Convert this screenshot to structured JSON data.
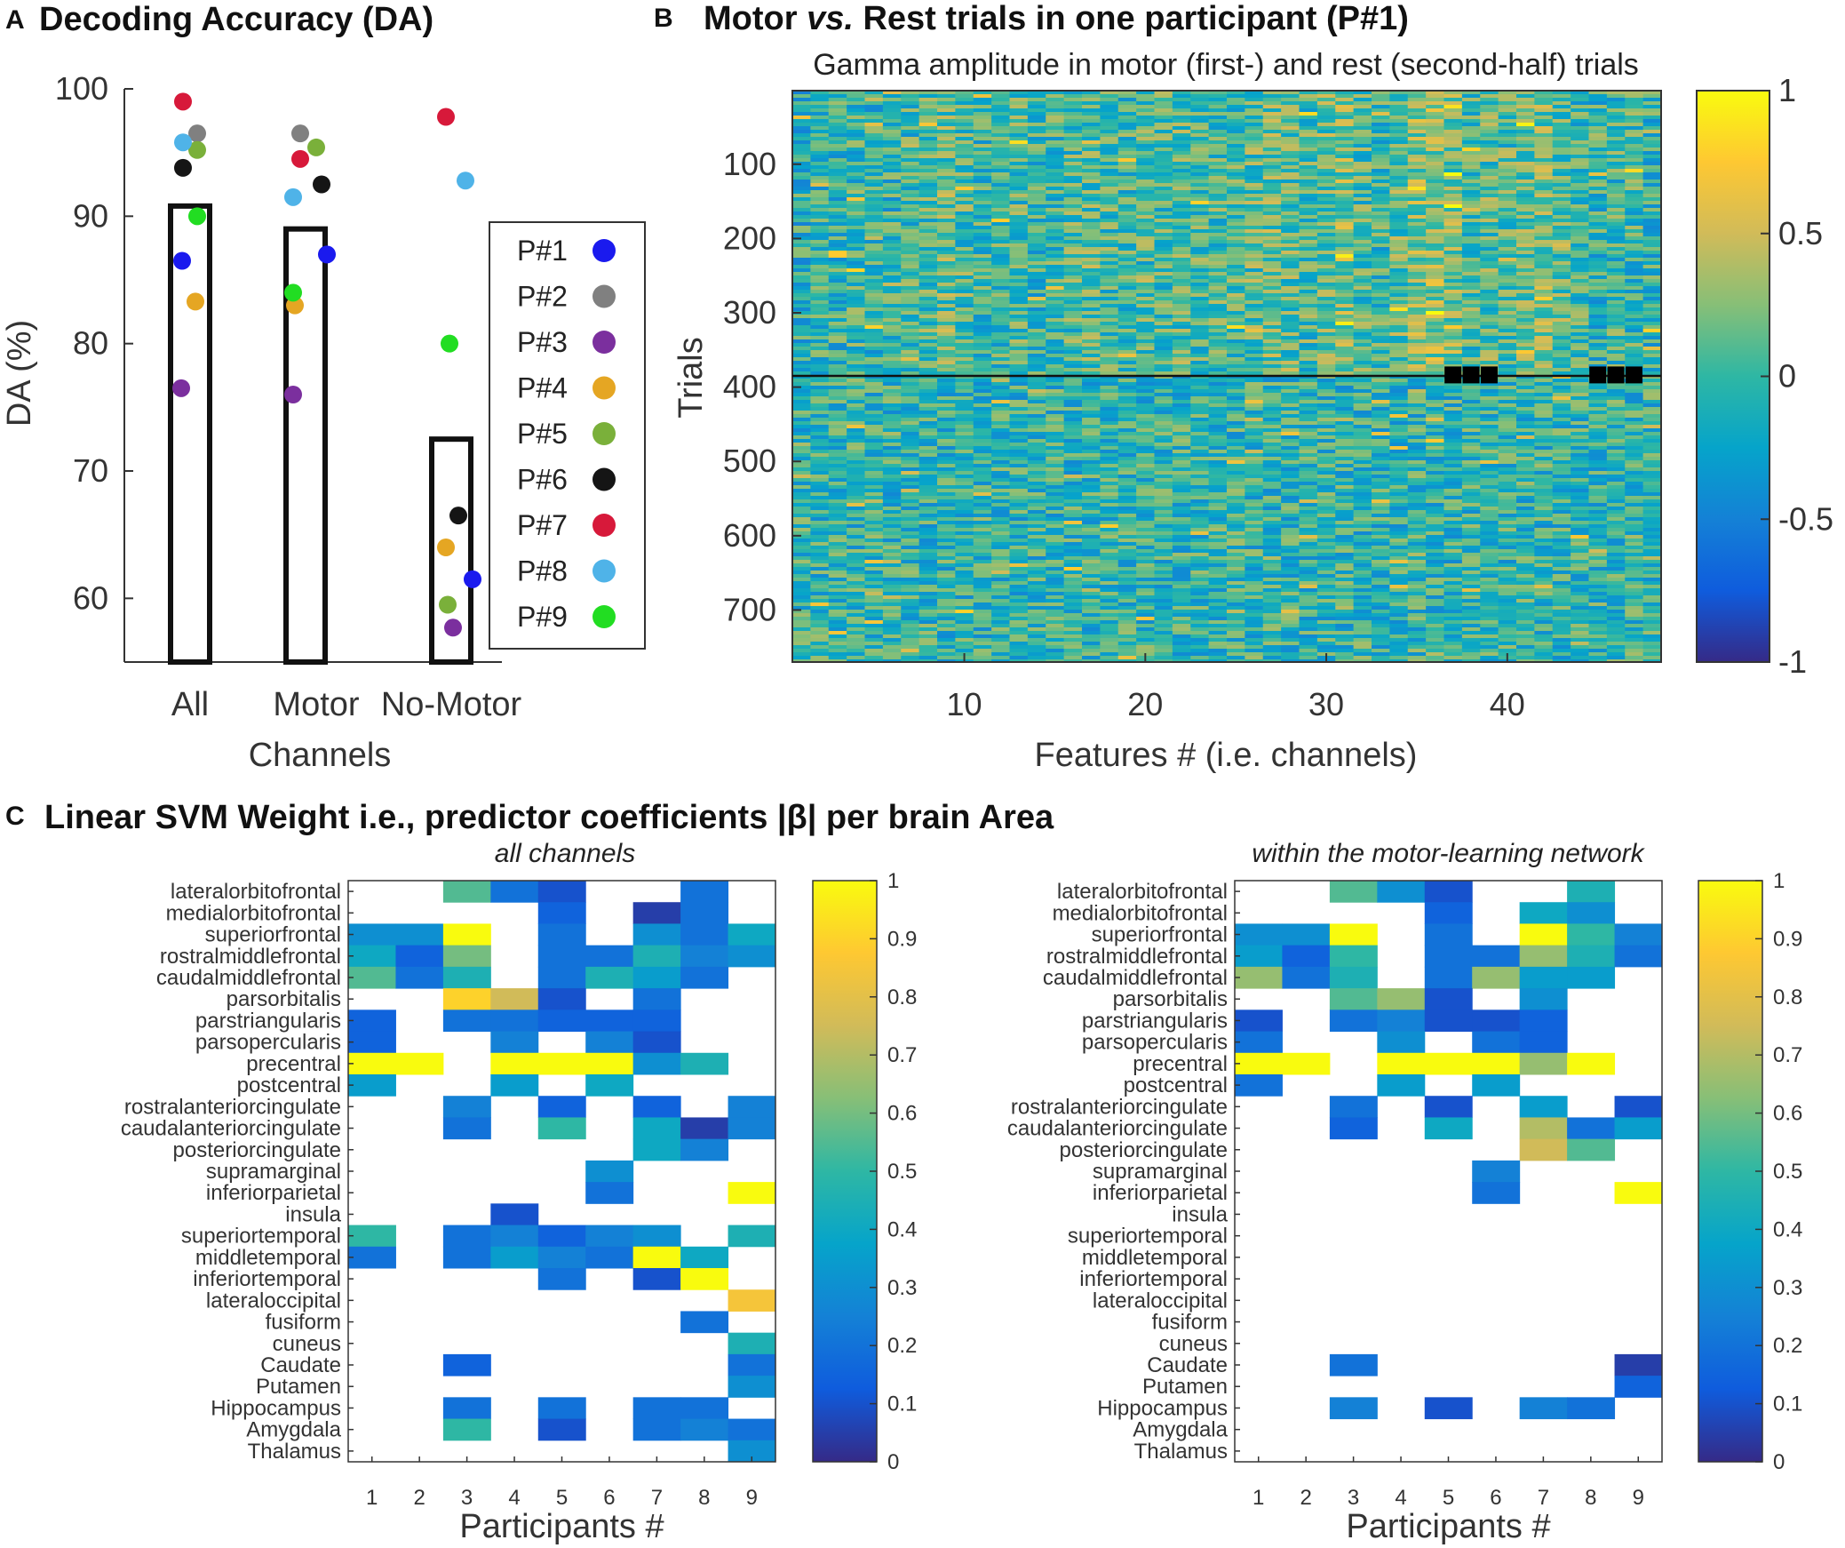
{
  "panel_a": {
    "label": "A",
    "title": "Decoding Accuracy (DA)",
    "ylabel": "DA (%)",
    "xlabel": "Channels",
    "categories": [
      "All",
      "Motor",
      "No-Motor"
    ],
    "yticks": [
      "60",
      "70",
      "80",
      "90",
      "100"
    ]
  },
  "panel_b": {
    "label": "B",
    "title_prefix": "Motor ",
    "title_ital": "vs.",
    "title_suffix": " Rest trials in one participant (P#1)",
    "subtitle": "Gamma amplitude in motor (first-) and rest (second-half) trials",
    "ylabel": "Trials",
    "xlabel": "Features # (i.e. channels)",
    "yticks": [
      "100",
      "200",
      "300",
      "400",
      "500",
      "600",
      "700"
    ],
    "xticks": [
      "10",
      "20",
      "30",
      "40"
    ],
    "cbar_ticks": [
      "1",
      "0.5",
      "0",
      "-0.5",
      "-1"
    ]
  },
  "panel_c": {
    "label": "C",
    "title": "Linear SVM Weight i.e., predictor coefficients |β| per brain Area",
    "left_subtitle": "all channels",
    "right_subtitle": "within the motor-learning network",
    "xlabel": "Participants #",
    "xticks": [
      "1",
      "2",
      "3",
      "4",
      "5",
      "6",
      "7",
      "8",
      "9"
    ],
    "cbar_ticks": [
      "1",
      "0.9",
      "0.8",
      "0.7",
      "0.6",
      "0.5",
      "0.4",
      "0.3",
      "0.2",
      "0.1",
      "0"
    ]
  },
  "chart_data": [
    {
      "type": "scatter",
      "title": "Decoding Accuracy (DA)",
      "xlabel": "Channels",
      "ylabel": "DA (%)",
      "ylim": [
        55,
        100
      ],
      "categories": [
        "All",
        "Motor",
        "No-Motor"
      ],
      "bars": [
        90.8,
        89.0,
        72.5
      ],
      "legend": [
        {
          "name": "P#1",
          "color": "#1a1aee"
        },
        {
          "name": "P#2",
          "color": "#808080"
        },
        {
          "name": "P#3",
          "color": "#7b2f9e"
        },
        {
          "name": "P#4",
          "color": "#e5a623"
        },
        {
          "name": "P#5",
          "color": "#7ab03a"
        },
        {
          "name": "P#6",
          "color": "#151515"
        },
        {
          "name": "P#7",
          "color": "#d7193a"
        },
        {
          "name": "P#8",
          "color": "#4fb3e8"
        },
        {
          "name": "P#9",
          "color": "#22dd22"
        }
      ],
      "series": [
        {
          "name": "P#1",
          "values": [
            86.5,
            87.0,
            61.5
          ]
        },
        {
          "name": "P#2",
          "values": [
            96.5,
            96.5,
            null
          ]
        },
        {
          "name": "P#3",
          "values": [
            76.5,
            76.0,
            57.7
          ]
        },
        {
          "name": "P#4",
          "values": [
            83.3,
            83.0,
            64.0
          ]
        },
        {
          "name": "P#5",
          "values": [
            95.2,
            95.4,
            59.5
          ]
        },
        {
          "name": "P#6",
          "values": [
            93.8,
            92.5,
            66.5
          ]
        },
        {
          "name": "P#7",
          "values": [
            99.0,
            94.5,
            97.8
          ]
        },
        {
          "name": "P#8",
          "values": [
            95.8,
            91.5,
            92.8
          ]
        },
        {
          "name": "P#9",
          "values": [
            90.0,
            84.0,
            80.0
          ]
        }
      ]
    },
    {
      "type": "heatmap",
      "title": "Motor vs. Rest trials in one participant (P#1)",
      "subtitle": "Gamma amplitude in motor (first-) and rest (second-half) trials",
      "xlabel": "Features # (i.e. channels)",
      "ylabel": "Trials",
      "xlim": [
        0.5,
        48.5
      ],
      "ylim": [
        1,
        770
      ],
      "split_trial": 383,
      "clim": [
        -1,
        1
      ],
      "colormap": "parula",
      "column_bias_first_half": [
        -0.1,
        -0.05,
        -0.05,
        0,
        -0.05,
        -0.05,
        0,
        0.05,
        0.15,
        0.05,
        0,
        0,
        0.05,
        -0.05,
        0,
        0.05,
        0.1,
        0.05,
        0,
        0.05,
        0.05,
        0.1,
        0.05,
        0.05,
        0.05,
        0.1,
        0.15,
        0.1,
        0.05,
        0.15,
        0.25,
        0.05,
        0,
        0.1,
        0.25,
        0.3,
        0.2,
        0.05,
        0.1,
        0.05,
        0.15,
        0.2,
        0.1,
        0,
        -0.05,
        0,
        0,
        -0.05
      ],
      "masked_cells": [
        {
          "feature": 37,
          "trial": 383
        },
        {
          "feature": 38,
          "trial": 383
        },
        {
          "feature": 39,
          "trial": 383
        },
        {
          "feature": 45,
          "trial": 383
        },
        {
          "feature": 46,
          "trial": 383
        },
        {
          "feature": 47,
          "trial": 383
        }
      ]
    },
    {
      "type": "heatmap",
      "title": "all channels",
      "xlabel": "Participants #",
      "clim": [
        0,
        1
      ],
      "colormap": "parula",
      "rows": [
        "lateralorbitofrontal",
        "medialorbitofrontal",
        "superiorfrontal",
        "rostralmiddlefrontal",
        "caudalmiddlefrontal",
        "parsorbitalis",
        "parstriangularis",
        "parsopercularis",
        "precentral",
        "postcentral",
        "rostralanteriorcingulate",
        "caudalanteriorcingulate",
        "posteriorcingulate",
        "supramarginal",
        "inferiorparietal",
        "insula",
        "superiortemporal",
        "middletemporal",
        "inferiortemporal",
        "lateraloccipital",
        "fusiform",
        "cuneus",
        "Caudate",
        "Putamen",
        "Hippocampus",
        "Amygdala",
        "Thalamus"
      ],
      "columns": [
        "1",
        "2",
        "3",
        "4",
        "5",
        "6",
        "7",
        "8",
        "9"
      ],
      "values": [
        [
          null,
          null,
          0.55,
          0.2,
          0.1,
          null,
          null,
          0.2,
          null
        ],
        [
          null,
          null,
          null,
          null,
          0.15,
          null,
          0.05,
          0.2,
          null
        ],
        [
          0.3,
          0.3,
          1.0,
          null,
          0.2,
          null,
          0.3,
          0.2,
          0.4
        ],
        [
          0.4,
          0.15,
          0.6,
          null,
          0.2,
          0.2,
          0.45,
          0.25,
          0.3
        ],
        [
          0.55,
          0.2,
          0.45,
          null,
          0.2,
          0.45,
          0.35,
          0.2,
          null
        ],
        [
          null,
          null,
          0.9,
          0.75,
          0.1,
          null,
          0.2,
          null,
          null
        ],
        [
          0.15,
          null,
          0.2,
          0.2,
          0.15,
          0.15,
          0.15,
          null,
          null
        ],
        [
          0.15,
          null,
          null,
          0.25,
          null,
          0.25,
          0.1,
          null,
          null
        ],
        [
          1.0,
          1.0,
          null,
          1.0,
          1.0,
          1.0,
          0.3,
          0.45,
          null
        ],
        [
          0.35,
          null,
          null,
          0.35,
          null,
          0.4,
          null,
          null,
          null
        ],
        [
          null,
          null,
          0.25,
          null,
          0.15,
          null,
          0.15,
          null,
          0.25
        ],
        [
          null,
          null,
          0.2,
          null,
          0.5,
          null,
          0.4,
          0.05,
          0.25
        ],
        [
          null,
          null,
          null,
          null,
          null,
          null,
          0.4,
          0.25,
          null
        ],
        [
          null,
          null,
          null,
          null,
          null,
          0.3,
          null,
          null,
          null
        ],
        [
          null,
          null,
          null,
          null,
          null,
          0.2,
          null,
          null,
          1.0
        ],
        [
          null,
          null,
          null,
          0.1,
          null,
          null,
          null,
          null,
          null
        ],
        [
          0.5,
          null,
          0.2,
          0.25,
          0.15,
          0.25,
          0.3,
          null,
          0.45
        ],
        [
          0.2,
          null,
          0.2,
          0.35,
          0.25,
          0.2,
          1.0,
          0.4,
          null
        ],
        [
          null,
          null,
          null,
          null,
          0.2,
          null,
          0.1,
          1.0,
          null
        ],
        [
          null,
          null,
          null,
          null,
          null,
          null,
          null,
          null,
          0.85
        ],
        [
          null,
          null,
          null,
          null,
          null,
          null,
          null,
          0.2,
          null
        ],
        [
          null,
          null,
          null,
          null,
          null,
          null,
          null,
          null,
          0.45
        ],
        [
          null,
          null,
          0.15,
          null,
          null,
          null,
          null,
          null,
          0.2
        ],
        [
          null,
          null,
          null,
          null,
          null,
          null,
          null,
          null,
          0.3
        ],
        [
          null,
          null,
          0.2,
          null,
          0.2,
          null,
          0.2,
          0.2,
          null
        ],
        [
          null,
          null,
          0.5,
          null,
          0.1,
          null,
          0.2,
          0.25,
          0.2
        ],
        [
          null,
          null,
          null,
          null,
          null,
          null,
          null,
          null,
          0.3
        ]
      ]
    },
    {
      "type": "heatmap",
      "title": "within the motor-learning network",
      "xlabel": "Participants #",
      "clim": [
        0,
        1
      ],
      "colormap": "parula",
      "rows": [
        "lateralorbitofrontal",
        "medialorbitofrontal",
        "superiorfrontal",
        "rostralmiddlefrontal",
        "caudalmiddlefrontal",
        "parsorbitalis",
        "parstriangularis",
        "parsopercularis",
        "precentral",
        "postcentral",
        "rostralanteriorcingulate",
        "caudalanteriorcingulate",
        "posteriorcingulate",
        "supramarginal",
        "inferiorparietal",
        "insula",
        "superiortemporal",
        "middletemporal",
        "inferiortemporal",
        "lateraloccipital",
        "fusiform",
        "cuneus",
        "Caudate",
        "Putamen",
        "Hippocampus",
        "Amygdala",
        "Thalamus"
      ],
      "columns": [
        "1",
        "2",
        "3",
        "4",
        "5",
        "6",
        "7",
        "8",
        "9"
      ],
      "values": [
        [
          null,
          null,
          0.55,
          0.3,
          0.1,
          null,
          null,
          0.45,
          null
        ],
        [
          null,
          null,
          null,
          null,
          0.15,
          null,
          0.4,
          0.3,
          null
        ],
        [
          0.3,
          0.3,
          1.0,
          null,
          0.2,
          null,
          1.0,
          0.5,
          0.25
        ],
        [
          0.35,
          0.15,
          0.5,
          null,
          0.2,
          0.2,
          0.65,
          0.45,
          0.2
        ],
        [
          0.65,
          0.2,
          0.45,
          null,
          0.2,
          0.65,
          0.35,
          0.35,
          null
        ],
        [
          null,
          null,
          0.55,
          0.65,
          0.1,
          null,
          0.3,
          null,
          null
        ],
        [
          0.1,
          null,
          0.2,
          0.25,
          0.1,
          0.1,
          0.15,
          null,
          null
        ],
        [
          0.2,
          null,
          null,
          0.3,
          null,
          0.2,
          0.15,
          null,
          null
        ],
        [
          1.0,
          1.0,
          null,
          1.0,
          1.0,
          1.0,
          0.65,
          1.0,
          null
        ],
        [
          0.2,
          null,
          null,
          0.35,
          null,
          0.35,
          null,
          null,
          null
        ],
        [
          null,
          null,
          0.2,
          null,
          0.1,
          null,
          0.35,
          null,
          0.1
        ],
        [
          null,
          null,
          0.15,
          null,
          0.4,
          null,
          0.7,
          0.2,
          0.35
        ],
        [
          null,
          null,
          null,
          null,
          null,
          null,
          0.75,
          0.55,
          null
        ],
        [
          null,
          null,
          null,
          null,
          null,
          0.25,
          null,
          null,
          null
        ],
        [
          null,
          null,
          null,
          null,
          null,
          0.2,
          null,
          null,
          1.0
        ],
        [
          null,
          null,
          null,
          null,
          null,
          null,
          null,
          null,
          null
        ],
        [
          null,
          null,
          null,
          null,
          null,
          null,
          null,
          null,
          null
        ],
        [
          null,
          null,
          null,
          null,
          null,
          null,
          null,
          null,
          null
        ],
        [
          null,
          null,
          null,
          null,
          null,
          null,
          null,
          null,
          null
        ],
        [
          null,
          null,
          null,
          null,
          null,
          null,
          null,
          null,
          null
        ],
        [
          null,
          null,
          null,
          null,
          null,
          null,
          null,
          null,
          null
        ],
        [
          null,
          null,
          null,
          null,
          null,
          null,
          null,
          null,
          null
        ],
        [
          null,
          null,
          0.2,
          null,
          null,
          null,
          null,
          null,
          0.05
        ],
        [
          null,
          null,
          null,
          null,
          null,
          null,
          null,
          null,
          0.15
        ],
        [
          null,
          null,
          0.25,
          null,
          0.1,
          null,
          0.25,
          0.2,
          null
        ],
        [
          null,
          null,
          null,
          null,
          null,
          null,
          null,
          null,
          null
        ],
        [
          null,
          null,
          null,
          null,
          null,
          null,
          null,
          null,
          null
        ]
      ]
    }
  ]
}
